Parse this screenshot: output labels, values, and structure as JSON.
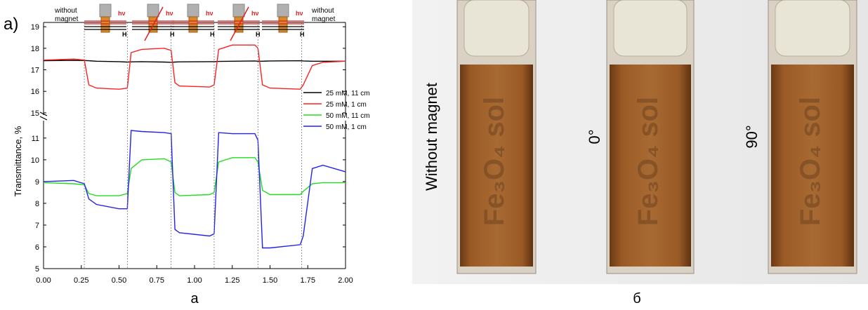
{
  "chart_data": [
    {
      "type": "line",
      "panel_label": "a)",
      "annotations": [
        "without\nmagnet",
        "without\nmagnet"
      ],
      "icon_labels": {
        "light": "hν",
        "field": "H"
      },
      "xlim": [
        0,
        2
      ],
      "ylim": [
        14.9,
        19.2
      ],
      "yticks": [
        15,
        16,
        17,
        18,
        19
      ],
      "x": [
        0,
        0.2,
        0.27,
        0.3,
        0.35,
        0.5,
        0.555,
        0.58,
        0.65,
        0.8,
        0.845,
        0.87,
        0.9,
        1.1,
        1.13,
        1.16,
        1.25,
        1.4,
        1.42,
        1.45,
        1.5,
        1.7,
        1.72,
        1.78,
        1.85,
        2.0
      ],
      "series": [
        {
          "name": "25 mM, 11 cm",
          "color": "#000000",
          "values": [
            17.42,
            17.44,
            17.43,
            17.42,
            17.4,
            17.38,
            17.36,
            17.37,
            17.38,
            17.36,
            17.35,
            17.36,
            17.37,
            17.38,
            17.38,
            17.39,
            17.4,
            17.41,
            17.4,
            17.4,
            17.41,
            17.42,
            17.41,
            17.4,
            17.4,
            17.4
          ]
        },
        {
          "name": "25 mM, 1 cm",
          "color": "#ff2020",
          "values": [
            17.45,
            17.5,
            17.45,
            16.3,
            16.15,
            16.1,
            16.15,
            17.8,
            17.95,
            18.0,
            17.9,
            16.4,
            16.25,
            16.2,
            16.3,
            17.95,
            18.15,
            18.15,
            18.0,
            16.3,
            16.15,
            16.1,
            16.3,
            17.2,
            17.35,
            17.4
          ]
        }
      ]
    },
    {
      "type": "line",
      "xlabel_caption": "а",
      "ylabel": "Transmittance, %",
      "xlim": [
        0,
        2
      ],
      "ylim": [
        5,
        11.8
      ],
      "yticks": [
        5,
        6,
        7,
        8,
        9,
        10,
        11
      ],
      "xticks": [
        {
          "value": 0,
          "label": "0.00"
        },
        {
          "value": 0.25,
          "label": "0.25"
        },
        {
          "value": 0.5,
          "label": "0.50"
        },
        {
          "value": 0.75,
          "label": "0.75"
        },
        {
          "value": 1,
          "label": "1.00"
        },
        {
          "value": 1.25,
          "label": "1.25"
        },
        {
          "value": 1.5,
          "label": "1.50"
        },
        {
          "value": 1.75,
          "label": "1.75"
        },
        {
          "value": 2,
          "label": "2.00"
        }
      ],
      "vlines": [
        0.27,
        0.555,
        0.845,
        1.13,
        1.42,
        1.71
      ],
      "x": [
        0,
        0.2,
        0.27,
        0.3,
        0.35,
        0.5,
        0.555,
        0.58,
        0.65,
        0.8,
        0.845,
        0.87,
        0.9,
        1.1,
        1.13,
        1.16,
        1.25,
        1.4,
        1.42,
        1.45,
        1.5,
        1.7,
        1.72,
        1.78,
        1.85,
        2.0
      ],
      "series": [
        {
          "name": "50 mM, 11 cm",
          "color": "#22dd22",
          "values": [
            8.95,
            8.9,
            8.85,
            8.45,
            8.35,
            8.35,
            8.45,
            9.6,
            10.0,
            10.05,
            9.9,
            8.5,
            8.35,
            8.4,
            8.5,
            9.9,
            10.1,
            10.1,
            9.9,
            8.6,
            8.4,
            8.4,
            8.55,
            8.9,
            8.95,
            8.95
          ]
        },
        {
          "name": "50 mM, 1 cm",
          "color": "#2222ee",
          "values": [
            9.0,
            9.05,
            8.9,
            8.2,
            7.95,
            7.75,
            7.75,
            11.35,
            11.3,
            11.25,
            11.2,
            6.8,
            6.65,
            6.5,
            6.6,
            11.25,
            11.2,
            11.2,
            10.9,
            5.95,
            5.95,
            6.1,
            6.5,
            9.6,
            9.75,
            9.45
          ]
        }
      ]
    }
  ],
  "photo": {
    "labels": [
      "Without magnet",
      "0°",
      "90°"
    ],
    "sample_text": "Fe₃O₄ sol",
    "caption": "б"
  }
}
